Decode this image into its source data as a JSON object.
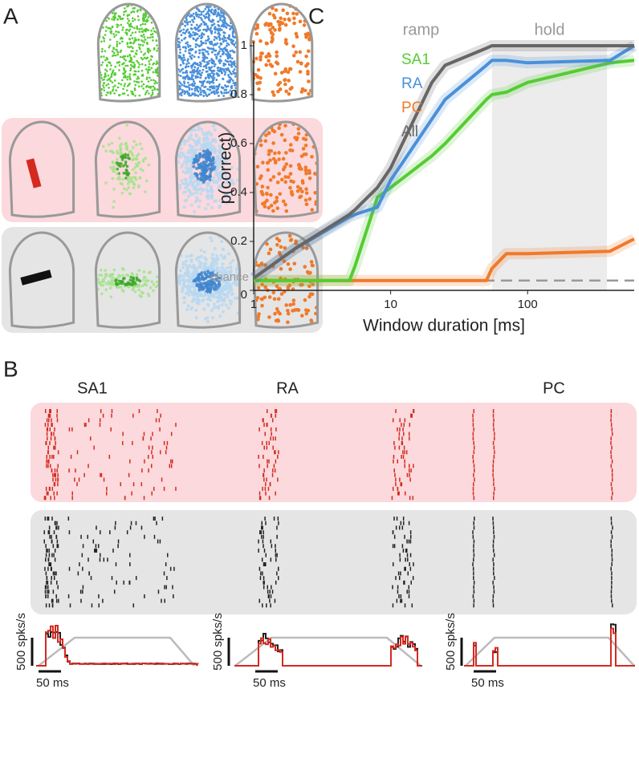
{
  "panel_labels": [
    "A",
    "B",
    "C"
  ],
  "panel_b": {
    "titles": [
      "SA1",
      "RA",
      "PC"
    ],
    "rate_scale": "500 spks/s",
    "time_scale": "50 ms"
  },
  "chart_data": {
    "type": "line",
    "xlabel": "Window duration [ms]",
    "ylabel": "p(correct)",
    "annotations": [
      "ramp",
      "hold"
    ],
    "chance": 0.04,
    "chance_label": "chance",
    "shaded_xrange": [
      55,
      380
    ],
    "log_x": true,
    "x": [
      1,
      2,
      5,
      5.5,
      8,
      10,
      20,
      25,
      50,
      55,
      70,
      100,
      400,
      600
    ],
    "series": [
      {
        "name": "SA1",
        "color": "#55cc33",
        "values": [
          0.04,
          0.04,
          0.04,
          0.1,
          0.38,
          0.42,
          0.55,
          0.6,
          0.78,
          0.8,
          0.81,
          0.85,
          0.93,
          0.94
        ]
      },
      {
        "name": "RA",
        "color": "#4a90d9",
        "values": [
          0.05,
          0.17,
          0.3,
          0.31,
          0.34,
          0.45,
          0.7,
          0.78,
          0.92,
          0.94,
          0.94,
          0.93,
          0.94,
          1
        ]
      },
      {
        "name": "PC",
        "color": "#f07a2a",
        "values": [
          0.04,
          0.04,
          0.04,
          0.04,
          0.04,
          0.04,
          0.04,
          0.04,
          0.04,
          0.09,
          0.15,
          0.15,
          0.16,
          0.21
        ]
      },
      {
        "name": "All",
        "color": "#666666",
        "values": [
          0.05,
          0.17,
          0.31,
          0.33,
          0.42,
          0.5,
          0.85,
          0.92,
          0.99,
          1,
          1,
          1,
          1,
          1
        ]
      }
    ],
    "xlim": [
      1,
      600
    ],
    "xticks": [
      1,
      10,
      100
    ],
    "ylim": [
      0,
      1
    ],
    "yticks": [
      0,
      0.2,
      0.4,
      0.6,
      0.8,
      1
    ],
    "grid": false
  }
}
